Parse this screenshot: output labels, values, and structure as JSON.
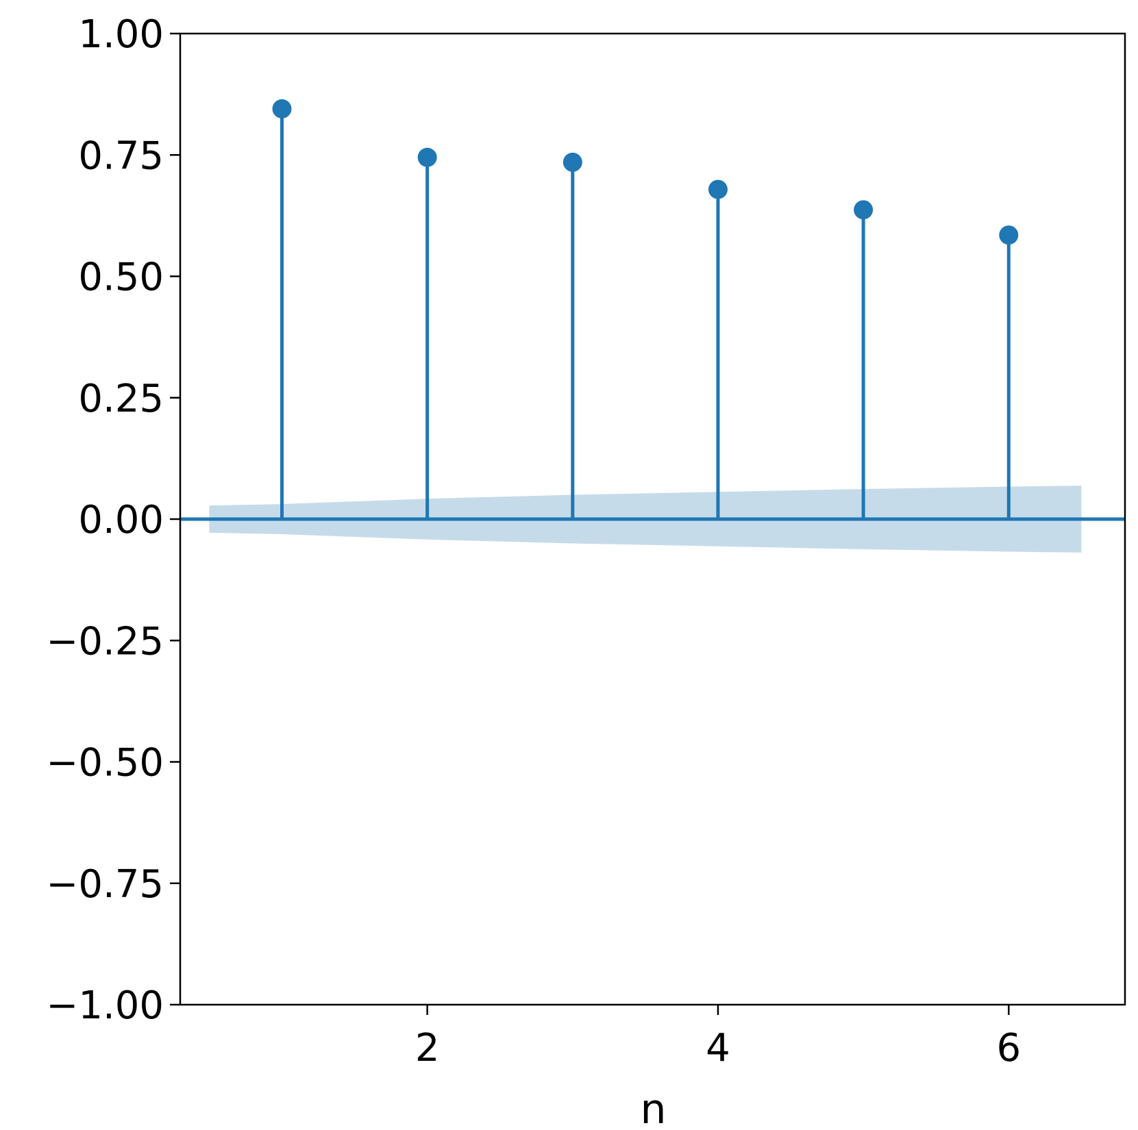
{
  "chart_data": {
    "type": "stem",
    "title": "",
    "xlabel": "n",
    "ylabel": "",
    "x": [
      1,
      2,
      3,
      4,
      5,
      6
    ],
    "values": [
      0.845,
      0.745,
      0.735,
      0.679,
      0.637,
      0.585
    ],
    "baseline": 0,
    "confidence_band": {
      "x": [
        0.5,
        1,
        2,
        3,
        4,
        5,
        6,
        6.5
      ],
      "upper": [
        0.028,
        0.031,
        0.042,
        0.05,
        0.056,
        0.062,
        0.067,
        0.069
      ],
      "lower": [
        -0.028,
        -0.031,
        -0.042,
        -0.05,
        -0.056,
        -0.062,
        -0.067,
        -0.069
      ]
    },
    "xlim": [
      0.3,
      6.8
    ],
    "ylim": [
      -1.0,
      1.0
    ],
    "x_ticks": [
      2,
      4,
      6
    ],
    "x_tick_labels": [
      "2",
      "4",
      "6"
    ],
    "y_ticks": [
      1.0,
      0.75,
      0.5,
      0.25,
      0.0,
      -0.25,
      -0.5,
      -0.75,
      -1.0
    ],
    "y_tick_labels": [
      "1.00",
      "0.75",
      "0.50",
      "0.25",
      "0.00",
      "−0.25",
      "−0.50",
      "−0.75",
      "−1.00"
    ],
    "grid": false,
    "colors": {
      "series": "#1f77b4",
      "band": "#c6dbea",
      "axes": "#000000"
    }
  }
}
